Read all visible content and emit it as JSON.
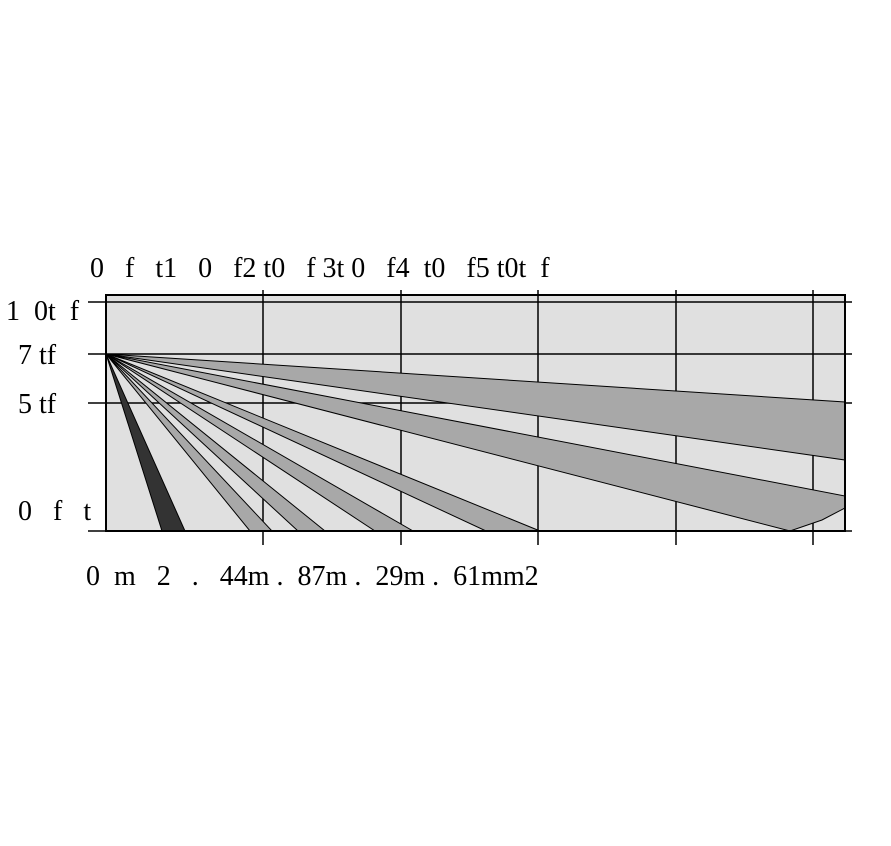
{
  "diagram": {
    "top_scale_text": "0   f   t1   0   f2 t0   f 3t 0   f4  t0   f5 t0t  f",
    "side_labels": [
      "1  0t  f",
      "7 tf",
      "5 tf",
      "0   f   t"
    ],
    "bottom_scale_text": "0  m   2   .   44m .  87m .  29m .  61mm2",
    "colors": {
      "background": "#e0e0e0",
      "beam_light": "#a8a8a8",
      "beam_dark": "#333333",
      "grid": "#000000"
    }
  }
}
